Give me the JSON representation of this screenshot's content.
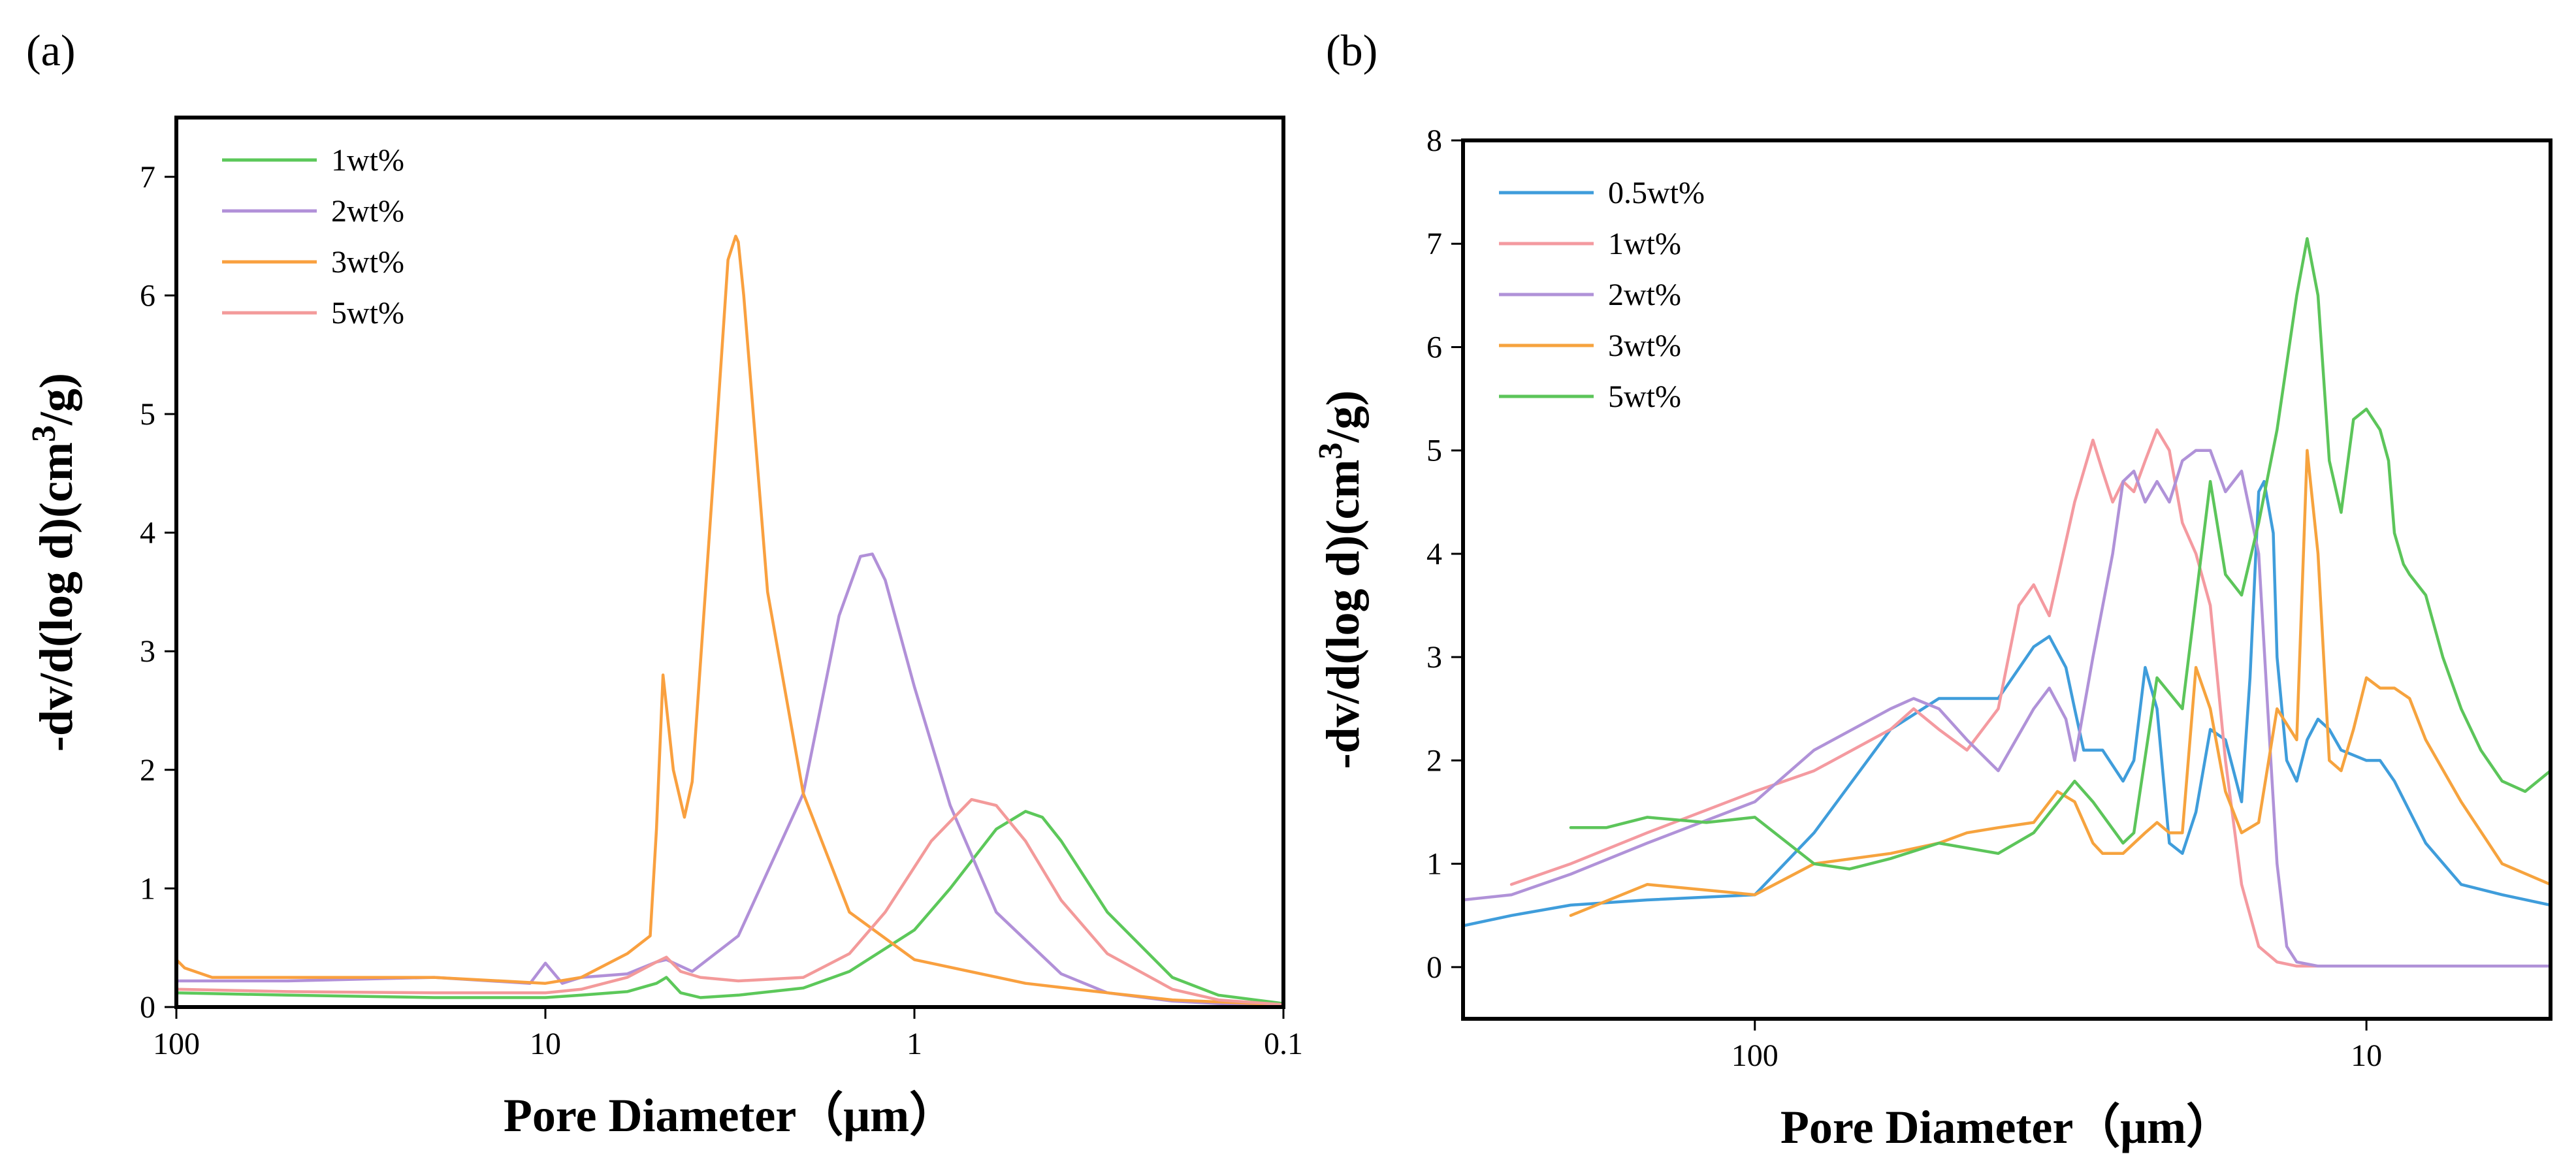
{
  "chart_data": [
    {
      "panel_label": "(a)",
      "type": "line",
      "title": "",
      "xlabel": "Pore Diameter（μm）",
      "ylabel": "-dv/d(log d)(cm³/g)",
      "ylabel_parts": {
        "prefix": "-dv/d(log d)(cm",
        "sup": "3",
        "suffix": "/g)"
      },
      "x_scale": "log",
      "x_reversed": true,
      "xlim": [
        100,
        0.1
      ],
      "ylim": [
        0,
        7.5
      ],
      "x_ticks": [
        100,
        10,
        1,
        0.1
      ],
      "x_tick_labels": [
        "100",
        "10",
        "1",
        "0.1"
      ],
      "y_ticks": [
        0,
        1,
        2,
        3,
        4,
        5,
        6,
        7
      ],
      "y_tick_labels": [
        "0",
        "1",
        "2",
        "3",
        "4",
        "5",
        "6",
        "7"
      ],
      "grid": false,
      "legend": "top-left",
      "series": [
        {
          "name": "1wt%",
          "color": "#5cc85a",
          "x": [
            100,
            50,
            20,
            10,
            8,
            6,
            5,
            4.7,
            4.3,
            3.8,
            3,
            2,
            1.5,
            1,
            0.8,
            0.6,
            0.5,
            0.45,
            0.4,
            0.3,
            0.2,
            0.15,
            0.1
          ],
          "y": [
            0.12,
            0.1,
            0.08,
            0.08,
            0.1,
            0.13,
            0.2,
            0.25,
            0.12,
            0.08,
            0.1,
            0.16,
            0.3,
            0.65,
            1.0,
            1.5,
            1.65,
            1.6,
            1.4,
            0.8,
            0.25,
            0.1,
            0.03
          ]
        },
        {
          "name": "2wt%",
          "color": "#b190d8",
          "x": [
            100,
            50,
            20,
            11,
            10,
            9,
            8,
            6,
            5,
            4.7,
            4,
            3,
            2,
            1.6,
            1.4,
            1.3,
            1.2,
            1,
            0.8,
            0.6,
            0.4,
            0.3,
            0.2,
            0.15,
            0.1
          ],
          "y": [
            0.22,
            0.22,
            0.25,
            0.2,
            0.37,
            0.2,
            0.25,
            0.28,
            0.38,
            0.4,
            0.3,
            0.6,
            1.8,
            3.3,
            3.8,
            3.82,
            3.6,
            2.7,
            1.7,
            0.8,
            0.28,
            0.12,
            0.05,
            0.03,
            0.02
          ]
        },
        {
          "name": "3wt%",
          "color": "#f9a03f",
          "x": [
            100,
            95,
            80,
            50,
            30,
            20,
            10,
            8,
            6,
            5.2,
            5,
            4.8,
            4.5,
            4.2,
            4,
            3.5,
            3.2,
            3.05,
            3,
            2.9,
            2.7,
            2.5,
            2,
            1.5,
            1,
            0.5,
            0.3,
            0.2,
            0.1
          ],
          "y": [
            0.4,
            0.33,
            0.25,
            0.25,
            0.25,
            0.25,
            0.2,
            0.25,
            0.45,
            0.6,
            1.5,
            2.8,
            2.0,
            1.6,
            1.9,
            4.5,
            6.3,
            6.5,
            6.45,
            6.0,
            4.8,
            3.5,
            1.8,
            0.8,
            0.4,
            0.2,
            0.12,
            0.06,
            0.02
          ]
        },
        {
          "name": "5wt%",
          "color": "#f39a9a",
          "x": [
            100,
            50,
            20,
            10,
            8,
            6,
            5,
            4.7,
            4.3,
            3.8,
            3,
            2,
            1.5,
            1.2,
            0.9,
            0.7,
            0.6,
            0.5,
            0.4,
            0.3,
            0.2,
            0.15,
            0.1
          ],
          "y": [
            0.15,
            0.13,
            0.12,
            0.12,
            0.15,
            0.25,
            0.38,
            0.42,
            0.3,
            0.25,
            0.22,
            0.25,
            0.45,
            0.8,
            1.4,
            1.75,
            1.7,
            1.4,
            0.9,
            0.45,
            0.15,
            0.06,
            0.02
          ]
        }
      ]
    },
    {
      "panel_label": "(b)",
      "type": "line",
      "title": "",
      "xlabel": "Pore Diameter（μm）",
      "ylabel": "-dv/d(log d)(cm³/g)",
      "ylabel_parts": {
        "prefix": "-dv/d(log d)(cm",
        "sup": "3",
        "suffix": "/g)"
      },
      "x_scale": "log",
      "x_reversed": true,
      "xlim": [
        300,
        5
      ],
      "ylim": [
        -0.5,
        8
      ],
      "x_ticks": [
        100,
        10
      ],
      "x_tick_labels": [
        "100",
        "10"
      ],
      "y_ticks": [
        0,
        1,
        2,
        3,
        4,
        5,
        6,
        7,
        8
      ],
      "y_tick_labels": [
        "0",
        "1",
        "2",
        "3",
        "4",
        "5",
        "6",
        "7",
        "8"
      ],
      "grid": false,
      "legend": "top-left",
      "series": [
        {
          "name": "0.5wt%",
          "color": "#3f9ddb",
          "x": [
            300,
            250,
            200,
            150,
            100,
            80,
            60,
            50,
            40,
            35,
            33,
            31,
            30,
            29,
            27,
            25,
            24,
            23,
            22,
            21,
            20,
            19,
            18,
            17,
            16,
            15.5,
            15,
            14.7,
            14.2,
            14,
            13.5,
            13,
            12.5,
            12,
            11.5,
            11,
            10,
            9.5,
            9,
            8,
            7,
            6,
            5
          ],
          "y": [
            0.4,
            0.5,
            0.6,
            0.65,
            0.7,
            1.3,
            2.3,
            2.6,
            2.6,
            3.1,
            3.2,
            2.9,
            2.5,
            2.1,
            2.1,
            1.8,
            2.0,
            2.9,
            2.5,
            1.2,
            1.1,
            1.5,
            2.3,
            2.2,
            1.6,
            2.8,
            4.6,
            4.7,
            4.2,
            3.0,
            2.0,
            1.8,
            2.2,
            2.4,
            2.3,
            2.1,
            2.0,
            2.0,
            1.8,
            1.2,
            0.8,
            0.7,
            0.6
          ]
        },
        {
          "name": "1wt%",
          "color": "#f49aa0",
          "x": [
            250,
            200,
            150,
            100,
            80,
            60,
            55,
            50,
            45,
            40,
            37,
            35,
            33,
            30,
            28,
            27,
            26,
            25,
            24,
            23,
            22,
            21,
            20,
            19,
            18,
            17,
            16,
            15,
            14,
            13,
            12,
            11,
            10,
            8,
            5
          ],
          "y": [
            0.8,
            1.0,
            1.3,
            1.7,
            1.9,
            2.3,
            2.5,
            2.3,
            2.1,
            2.5,
            3.5,
            3.7,
            3.4,
            4.5,
            5.1,
            4.8,
            4.5,
            4.7,
            4.6,
            4.9,
            5.2,
            5.0,
            4.3,
            4.0,
            3.5,
            2.0,
            0.8,
            0.2,
            0.05,
            0.01,
            0.01,
            0.01,
            0.01,
            0.01,
            0.01
          ]
        },
        {
          "name": "2wt%",
          "color": "#b092d8",
          "x": [
            300,
            250,
            200,
            150,
            100,
            80,
            60,
            55,
            50,
            45,
            40,
            35,
            33,
            31,
            30,
            28,
            26,
            25,
            24,
            23,
            22,
            21,
            20,
            19,
            18,
            17,
            16,
            15,
            14.5,
            14,
            13.5,
            13,
            12,
            10,
            8,
            5
          ],
          "y": [
            0.65,
            0.7,
            0.9,
            1.2,
            1.6,
            2.1,
            2.5,
            2.6,
            2.5,
            2.2,
            1.9,
            2.5,
            2.7,
            2.4,
            2.0,
            3.0,
            4.0,
            4.7,
            4.8,
            4.5,
            4.7,
            4.5,
            4.9,
            5.0,
            5.0,
            4.6,
            4.8,
            4.0,
            2.5,
            1.0,
            0.2,
            0.05,
            0.01,
            0.01,
            0.01,
            0.01
          ]
        },
        {
          "name": "3wt%",
          "color": "#f6a33e",
          "x": [
            200,
            150,
            100,
            80,
            60,
            50,
            45,
            40,
            35,
            32,
            30,
            28,
            27,
            25,
            23,
            22,
            21,
            20,
            19,
            18,
            17,
            16,
            15,
            14,
            13,
            12.5,
            12,
            11.5,
            11,
            10.5,
            10,
            9.5,
            9,
            8.5,
            8,
            7,
            6,
            5
          ],
          "y": [
            0.5,
            0.8,
            0.7,
            1.0,
            1.1,
            1.2,
            1.3,
            1.35,
            1.4,
            1.7,
            1.6,
            1.2,
            1.1,
            1.1,
            1.3,
            1.4,
            1.3,
            1.3,
            2.9,
            2.5,
            1.7,
            1.3,
            1.4,
            2.5,
            2.2,
            5.0,
            4.0,
            2.0,
            1.9,
            2.3,
            2.8,
            2.7,
            2.7,
            2.6,
            2.2,
            1.6,
            1.0,
            0.8
          ]
        },
        {
          "name": "5wt%",
          "color": "#5cc55a",
          "x": [
            200,
            175,
            150,
            120,
            100,
            80,
            70,
            60,
            50,
            40,
            35,
            30,
            28,
            25,
            24,
            22,
            20,
            18,
            17,
            16,
            15,
            14,
            13,
            12.5,
            12,
            11.5,
            11,
            10.5,
            10,
            9.5,
            9.2,
            9,
            8.7,
            8.5,
            8,
            7.5,
            7,
            6.5,
            6,
            5.5,
            5
          ],
          "y": [
            1.35,
            1.35,
            1.45,
            1.4,
            1.45,
            1.0,
            0.95,
            1.05,
            1.2,
            1.1,
            1.3,
            1.8,
            1.6,
            1.2,
            1.3,
            2.8,
            2.5,
            4.7,
            3.8,
            3.6,
            4.3,
            5.2,
            6.5,
            7.05,
            6.5,
            4.9,
            4.4,
            5.3,
            5.4,
            5.2,
            4.9,
            4.2,
            3.9,
            3.8,
            3.6,
            3.0,
            2.5,
            2.1,
            1.8,
            1.7,
            1.9
          ]
        }
      ]
    }
  ]
}
